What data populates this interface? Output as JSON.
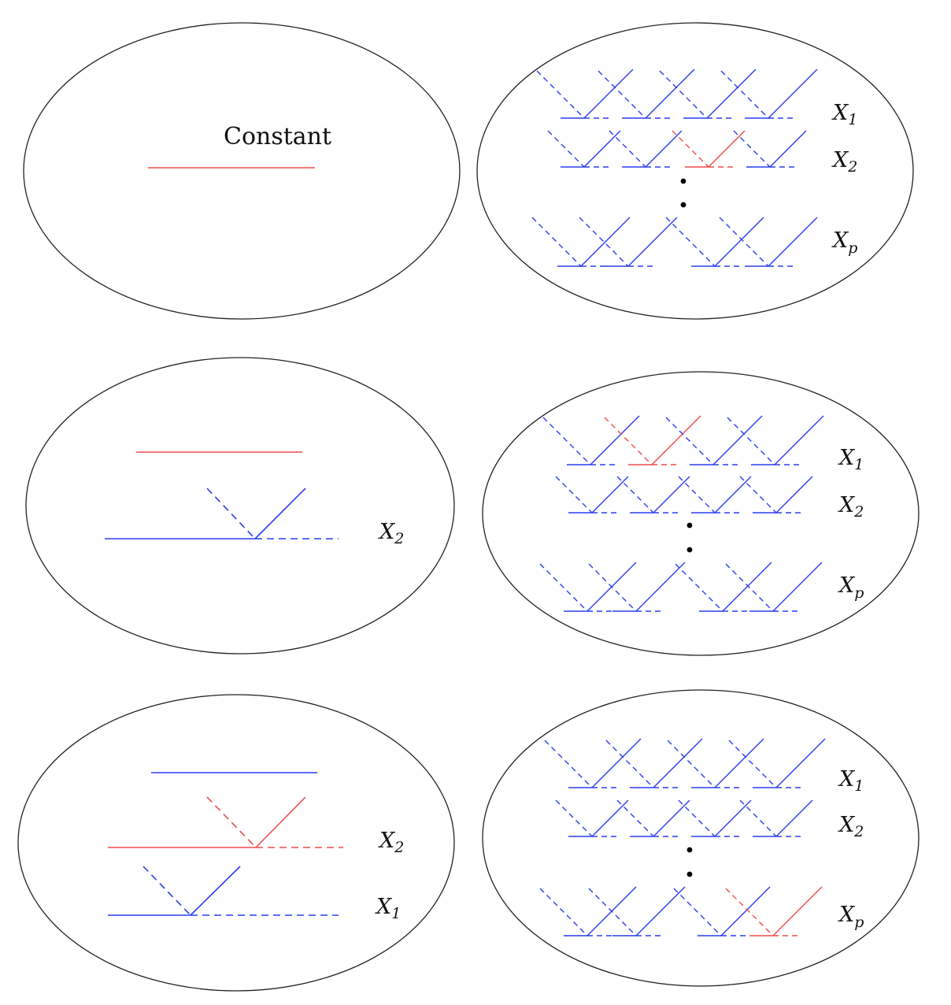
{
  "colors": {
    "outline": "#222222",
    "blue": "#2b3df0",
    "red": "#ee4b4b",
    "dot": "#000000"
  },
  "panels": [
    {
      "title": "Constant"
    },
    {
      "labels": [
        {
          "base": "X",
          "sub": "1"
        },
        {
          "base": "X",
          "sub": "2"
        },
        {
          "base": "X",
          "sub": "p"
        }
      ]
    },
    {
      "labels": [
        {
          "base": "X",
          "sub": "2"
        }
      ]
    },
    {
      "labels": [
        {
          "base": "X",
          "sub": "1"
        },
        {
          "base": "X",
          "sub": "2"
        },
        {
          "base": "X",
          "sub": "p"
        }
      ]
    },
    {
      "labels": [
        {
          "base": "X",
          "sub": "2"
        },
        {
          "base": "X",
          "sub": "1"
        }
      ]
    },
    {
      "labels": [
        {
          "base": "X",
          "sub": "1"
        },
        {
          "base": "X",
          "sub": "2"
        },
        {
          "base": "X",
          "sub": "p"
        }
      ]
    }
  ]
}
